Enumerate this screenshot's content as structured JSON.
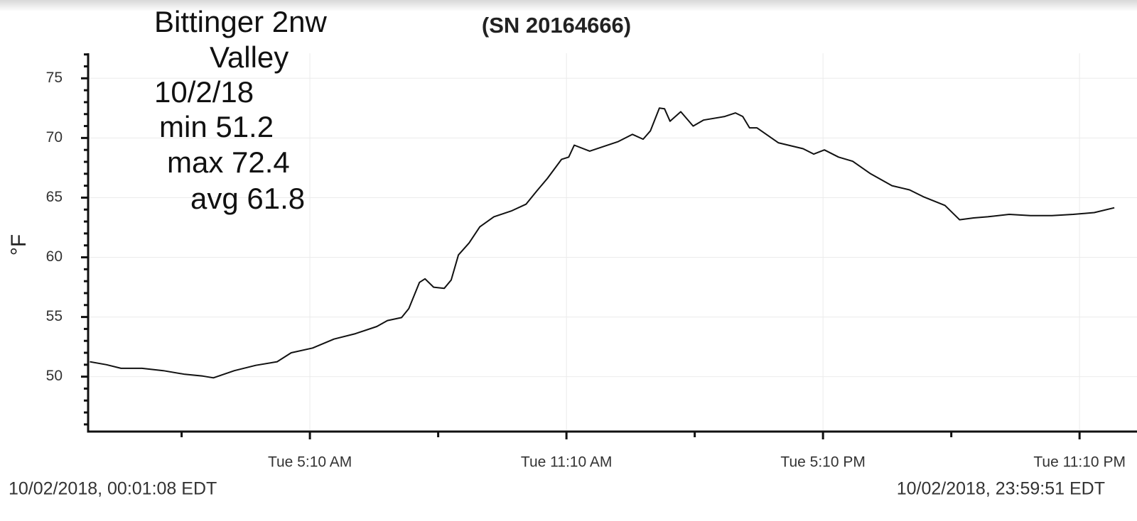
{
  "chart_data": {
    "type": "line",
    "title": "(SN 20164666)",
    "ylabel": "°F",
    "annotations": [
      "Bittinger 2nw",
      "Valley",
      "10/2/18",
      "min 51.2",
      "max 72.4",
      "avg 61.8"
    ],
    "start_label": "10/02/2018, 00:01:08 EDT",
    "end_label": "10/02/2018, 23:59:51 EDT",
    "color": "#111111",
    "grid": true,
    "xlim": [
      -0.02,
      24.51
    ],
    "ylim": [
      45.4,
      77.1
    ],
    "yticks": [
      50,
      55,
      60,
      65,
      70,
      75
    ],
    "yminorticks": [
      46,
      47,
      48,
      49,
      51,
      52,
      53,
      54,
      56,
      57,
      58,
      59,
      61,
      62,
      63,
      64,
      66,
      67,
      68,
      69,
      71,
      72,
      73,
      74,
      76,
      77
    ],
    "xticks": [
      {
        "value": 5.1667,
        "label": "Tue 5:10 AM"
      },
      {
        "value": 11.1667,
        "label": "Tue 11:10 AM"
      },
      {
        "value": 17.1667,
        "label": "Tue 5:10 PM"
      },
      {
        "value": 23.1667,
        "label": "Tue 11:10 PM"
      }
    ],
    "xminorticks": [
      2.1667,
      8.1667,
      14.1667,
      20.1667
    ],
    "x": [
      0.02,
      0.41,
      0.75,
      1.24,
      1.74,
      2.24,
      2.66,
      2.91,
      3.4,
      3.9,
      4.4,
      4.73,
      5.23,
      5.73,
      6.23,
      6.73,
      6.98,
      7.31,
      7.48,
      7.73,
      7.86,
      8.06,
      8.31,
      8.47,
      8.64,
      8.89,
      9.14,
      9.47,
      9.89,
      10.22,
      10.47,
      10.72,
      11.05,
      11.22,
      11.35,
      11.71,
      12.05,
      12.38,
      12.71,
      12.96,
      13.13,
      13.34,
      13.46,
      13.59,
      13.84,
      14.13,
      14.37,
      14.87,
      15.12,
      15.29,
      15.45,
      15.62,
      16.12,
      16.7,
      16.95,
      17.2,
      17.53,
      17.86,
      18.28,
      18.78,
      19.19,
      19.53,
      20.02,
      20.36,
      20.69,
      21.02,
      21.52,
      22.02,
      22.52,
      23.02,
      23.51,
      23.98
    ],
    "values": [
      51.25,
      51.0,
      50.7,
      50.7,
      50.5,
      50.2,
      50.05,
      49.9,
      50.5,
      50.95,
      51.25,
      52.0,
      52.4,
      53.15,
      53.6,
      54.2,
      54.7,
      54.95,
      55.7,
      57.9,
      58.2,
      57.5,
      57.4,
      58.1,
      60.2,
      61.2,
      62.55,
      63.4,
      63.9,
      64.45,
      65.55,
      66.6,
      68.2,
      68.4,
      69.4,
      68.9,
      69.3,
      69.7,
      70.3,
      69.9,
      70.6,
      72.5,
      72.45,
      71.4,
      72.2,
      71.0,
      71.5,
      71.8,
      72.1,
      71.8,
      70.85,
      70.85,
      69.6,
      69.1,
      68.65,
      69.0,
      68.4,
      68.05,
      67.0,
      66.0,
      65.65,
      65.05,
      64.35,
      63.15,
      63.3,
      63.4,
      63.6,
      63.5,
      63.5,
      63.6,
      63.75,
      64.15
    ]
  }
}
